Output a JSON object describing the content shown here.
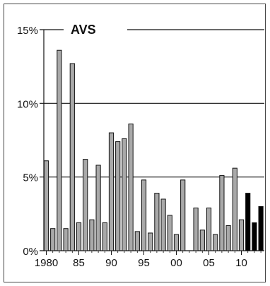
{
  "chart_data": {
    "type": "bar",
    "title": "AVS",
    "ylim": [
      0,
      15
    ],
    "y_ticks": [
      {
        "value": 0,
        "label": "0%"
      },
      {
        "value": 5,
        "label": "5%"
      },
      {
        "value": 10,
        "label": "10%"
      },
      {
        "value": 15,
        "label": "15%"
      }
    ],
    "x_ticks": [
      {
        "year": 1980,
        "label": "1980"
      },
      {
        "year": 1985,
        "label": "85"
      },
      {
        "year": 1990,
        "label": "90"
      },
      {
        "year": 1995,
        "label": "95"
      },
      {
        "year": 2000,
        "label": "00"
      },
      {
        "year": 2005,
        "label": "05"
      },
      {
        "year": 2010,
        "label": "10"
      }
    ],
    "grid": "horizontal",
    "colors": {
      "actual": "#a9a9a9",
      "projection": "#000000",
      "axis": "#111111"
    },
    "years": [
      1980,
      1981,
      1982,
      1983,
      1984,
      1985,
      1986,
      1987,
      1988,
      1989,
      1990,
      1991,
      1992,
      1993,
      1994,
      1995,
      1996,
      1997,
      1998,
      1999,
      2000,
      2001,
      2002,
      2003,
      2004,
      2005,
      2006,
      2007,
      2008,
      2009,
      2010,
      2011,
      2012,
      2013
    ],
    "values": [
      6.1,
      1.5,
      13.6,
      1.5,
      12.7,
      1.9,
      6.2,
      2.1,
      5.8,
      1.9,
      8.0,
      7.4,
      7.6,
      8.6,
      1.3,
      4.8,
      1.2,
      3.9,
      3.5,
      2.4,
      1.1,
      4.8,
      null,
      2.9,
      1.4,
      2.9,
      1.1,
      5.1,
      1.7,
      5.6,
      2.1,
      3.9,
      1.9,
      3.0
    ],
    "series_type": [
      "a",
      "a",
      "a",
      "a",
      "a",
      "a",
      "a",
      "a",
      "a",
      "a",
      "a",
      "a",
      "a",
      "a",
      "a",
      "a",
      "a",
      "a",
      "a",
      "a",
      "a",
      "a",
      "a",
      "a",
      "a",
      "a",
      "a",
      "a",
      "a",
      "a",
      "a",
      "p",
      "p",
      "p"
    ]
  }
}
